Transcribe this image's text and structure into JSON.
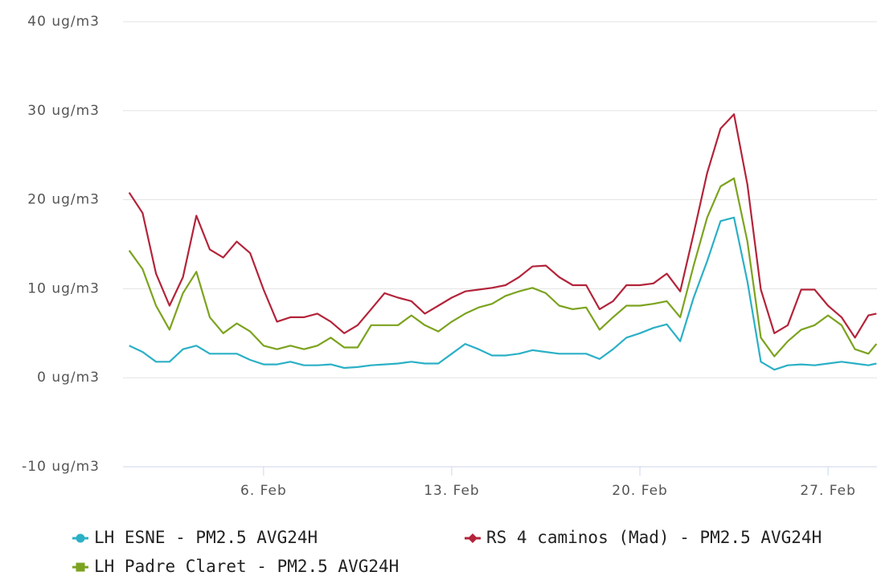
{
  "chart_data": {
    "type": "line",
    "x": [
      1,
      1.5,
      2,
      2.5,
      3,
      3.5,
      4,
      4.5,
      5,
      5.5,
      6,
      6.5,
      7,
      7.5,
      8,
      8.5,
      9,
      9.5,
      10,
      10.5,
      11,
      11.5,
      12,
      12.5,
      13,
      13.5,
      14,
      14.5,
      15,
      15.5,
      16,
      16.5,
      17,
      17.5,
      18,
      18.5,
      19,
      19.5,
      20,
      20.5,
      21,
      21.5,
      22,
      22.5,
      23,
      23.5,
      24,
      24.5,
      25,
      25.5,
      26,
      26.5,
      27,
      27.5,
      28,
      28.5,
      28.8
    ],
    "xlim": [
      0.77,
      28.82
    ],
    "xticks": [
      {
        "value": 6,
        "label": "6. Feb"
      },
      {
        "value": 13,
        "label": "13. Feb"
      },
      {
        "value": 20,
        "label": "20. Feb"
      },
      {
        "value": 27,
        "label": "27. Feb"
      }
    ],
    "ylim": [
      -10,
      40
    ],
    "yticks": [
      {
        "value": -10,
        "label": "-10 ug/m3"
      },
      {
        "value": 0,
        "label": "0 ug/m3"
      },
      {
        "value": 10,
        "label": "10 ug/m3"
      },
      {
        "value": 20,
        "label": "20 ug/m3"
      },
      {
        "value": 30,
        "label": "30 ug/m3"
      },
      {
        "value": 40,
        "label": "40 ug/m3"
      }
    ],
    "grid": true,
    "legend": "bottom",
    "series": [
      {
        "name": "LH ESNE - PM2.5 AVG24H",
        "color": "#2bb0c6",
        "marker": "circle",
        "values": [
          3.6,
          2.9,
          1.8,
          1.8,
          3.2,
          3.6,
          2.7,
          2.7,
          2.7,
          2,
          1.5,
          1.5,
          1.8,
          1.4,
          1.4,
          1.5,
          1.1,
          1.2,
          1.4,
          1.5,
          1.6,
          1.8,
          1.6,
          1.6,
          2.7,
          3.8,
          3.2,
          2.5,
          2.5,
          2.7,
          3.1,
          2.9,
          2.7,
          2.7,
          2.7,
          2.1,
          3.2,
          4.5,
          5,
          5.6,
          6,
          4.1,
          9,
          13.1,
          17.6,
          18,
          10.8,
          1.8,
          0.9,
          1.4,
          1.5,
          1.4,
          1.6,
          1.8,
          1.6,
          1.4,
          1.6
        ]
      },
      {
        "name": "RS 4 caminos (Mad) - PM2.5 AVG24H",
        "color": "#b3243a",
        "marker": "diamond",
        "values": [
          20.8,
          18.5,
          11.7,
          8.1,
          11.3,
          18.2,
          14.4,
          13.5,
          15.3,
          14,
          9.9,
          6.3,
          6.8,
          6.8,
          7.2,
          6.3,
          5,
          5.9,
          7.7,
          9.5,
          9,
          8.6,
          7.2,
          8.1,
          9,
          9.7,
          9.9,
          10.1,
          10.4,
          11.3,
          12.5,
          12.6,
          11.3,
          10.4,
          10.4,
          7.7,
          8.6,
          10.4,
          10.4,
          10.6,
          11.7,
          9.7,
          16.2,
          23,
          28,
          29.6,
          21.7,
          9.9,
          5,
          5.9,
          9.9,
          9.9,
          8.1,
          6.8,
          4.5,
          7,
          7.2
        ]
      },
      {
        "name": "LH Padre Claret - PM2.5 AVG24H",
        "color": "#7ca31f",
        "marker": "square",
        "values": [
          14.3,
          12.2,
          8.1,
          5.4,
          9.5,
          11.9,
          6.8,
          5,
          6.1,
          5.2,
          3.6,
          3.2,
          3.6,
          3.2,
          3.6,
          4.5,
          3.4,
          3.4,
          5.9,
          5.9,
          5.9,
          7,
          5.9,
          5.2,
          6.3,
          7.2,
          7.9,
          8.3,
          9.2,
          9.7,
          10.1,
          9.5,
          8.1,
          7.7,
          7.9,
          5.4,
          6.8,
          8.1,
          8.1,
          8.3,
          8.6,
          6.8,
          12.6,
          18,
          21.5,
          22.4,
          15.3,
          4.5,
          2.4,
          4.1,
          5.4,
          5.9,
          7,
          5.9,
          3.2,
          2.7,
          3.8
        ]
      }
    ]
  }
}
